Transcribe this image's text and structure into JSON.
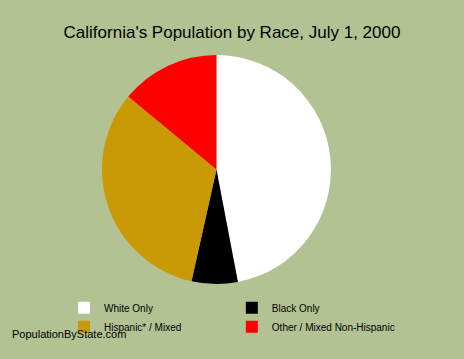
{
  "chart_data": {
    "type": "pie",
    "title": "California's Population by Race, July 1, 2000",
    "categories": [
      "White Only",
      "Black Only",
      "Hispanic* / Mixed",
      "Other / Mixed Non-Hispanic"
    ],
    "values": [
      47,
      6.5,
      32.5,
      14
    ],
    "colors": [
      "#ffffff",
      "#000000",
      "#c99a06",
      "#ff0000"
    ],
    "legend": "bottom",
    "data_labels": false,
    "annotations": [
      "PopulationByState.com"
    ]
  }
}
